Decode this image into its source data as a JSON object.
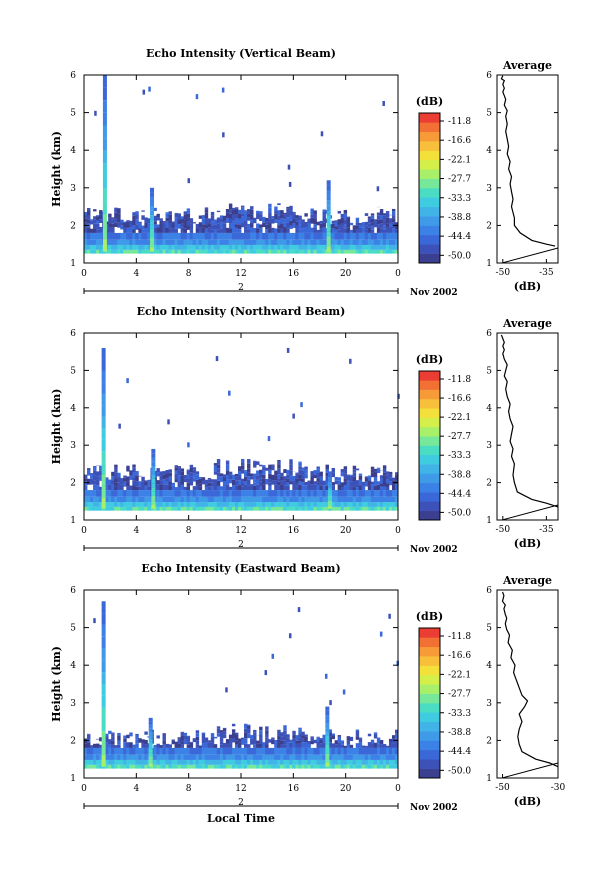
{
  "colors": {
    "scale": [
      "#3a3f8f",
      "#3d52b8",
      "#3a68d8",
      "#3c82e6",
      "#3f9ae8",
      "#40b4e6",
      "#3fcbe0",
      "#4bdcc4",
      "#77e89a",
      "#a8ef6a",
      "#d4ef4a",
      "#f3e03a",
      "#f8bf3a",
      "#f79a38",
      "#f37035",
      "#ec3d34"
    ],
    "axis": "#000000"
  },
  "colorbar": {
    "unit": "(dB)",
    "ticks": [
      "-11.8",
      "-16.6",
      "-22.1",
      "-27.7",
      "-33.3",
      "-38.8",
      "-44.4",
      "-50.0"
    ]
  },
  "time_axis": {
    "date_label": "Nov 2002",
    "date_labels": [
      "Nov 2002",
      "Nov 2002",
      "Nov 2002"
    ],
    "day_label": "2",
    "bottom_xlabel": "Local Time"
  },
  "chart_data": [
    {
      "type": "heatmap",
      "title": "Echo Intensity (Vertical Beam)",
      "ylabel": "Height (km)",
      "xlabel": "",
      "x_ticks": [
        "0",
        "4",
        "8",
        "12",
        "16",
        "20",
        "0"
      ],
      "y_ticks": [
        "1",
        "2",
        "3",
        "4",
        "5",
        "6"
      ],
      "xlim": [
        0,
        24
      ],
      "ylim": [
        1,
        6
      ],
      "color_unit": "dB",
      "color_range": [
        -50.0,
        -11.8
      ],
      "features": {
        "layer_top_km": 2.3,
        "spikes": [
          {
            "time_h": 1.6,
            "top_km": 6.0
          },
          {
            "time_h": 5.2,
            "top_km": 3.0
          },
          {
            "time_h": 18.7,
            "top_km": 3.2
          }
        ]
      }
    },
    {
      "type": "line",
      "title": "Average",
      "xlabel": "(dB)",
      "ylabel": "",
      "x_ticks": [
        "-50",
        "-35"
      ],
      "y_ticks": [
        "1",
        "2",
        "3",
        "4",
        "5",
        "6"
      ],
      "xlim": [
        -52,
        -31
      ],
      "ylim": [
        1,
        6
      ],
      "x": [
        -32,
        -35,
        -40,
        -44,
        -46,
        -46,
        -47,
        -46.5,
        -47,
        -47.5,
        -47,
        -48,
        -47.5,
        -48.5,
        -48,
        -48.5,
        -49,
        -48.5,
        -49,
        -48.5,
        -49.5,
        -49,
        -49.5,
        -50,
        -49.5,
        -50,
        -49.5,
        -50.5,
        -50
      ],
      "y": [
        1.45,
        1.5,
        1.6,
        1.8,
        2.0,
        2.2,
        2.5,
        2.7,
        2.9,
        3.1,
        3.3,
        3.5,
        3.7,
        3.9,
        4.1,
        4.3,
        4.5,
        4.7,
        4.9,
        5.05,
        5.2,
        5.35,
        5.45,
        5.55,
        5.65,
        5.75,
        5.85,
        5.9,
        5.98
      ]
    },
    {
      "type": "heatmap",
      "title": "Echo Intensity (Northward Beam)",
      "ylabel": "Height (km)",
      "xlabel": "",
      "x_ticks": [
        "0",
        "4",
        "8",
        "12",
        "16",
        "20",
        "0"
      ],
      "y_ticks": [
        "1",
        "2",
        "3",
        "4",
        "5",
        "6"
      ],
      "xlim": [
        0,
        24
      ],
      "ylim": [
        1,
        6
      ],
      "color_unit": "dB",
      "color_range": [
        -50.0,
        -11.8
      ],
      "features": {
        "layer_top_km": 2.3,
        "spikes": [
          {
            "time_h": 1.5,
            "top_km": 5.6
          },
          {
            "time_h": 5.3,
            "top_km": 2.9
          },
          {
            "time_h": 18.8,
            "top_km": 2.3
          }
        ]
      }
    },
    {
      "type": "line",
      "title": "Average",
      "xlabel": "(dB)",
      "ylabel": "",
      "x_ticks": [
        "-50",
        "-35"
      ],
      "y_ticks": [
        "1",
        "2",
        "3",
        "4",
        "5",
        "6"
      ],
      "xlim": [
        -52,
        -31
      ],
      "ylim": [
        1,
        6
      ],
      "x": [
        -31,
        -35,
        -40,
        -45,
        -46,
        -46.5,
        -46,
        -47,
        -46.5,
        -47.5,
        -47,
        -46.5,
        -47.5,
        -48,
        -47.5,
        -48.5,
        -49,
        -48.5,
        -49.5,
        -49,
        -48.5,
        -49.5,
        -50,
        -49.5,
        -50,
        -49.5,
        -50,
        -50.5
      ],
      "y": [
        1.35,
        1.45,
        1.55,
        1.75,
        2.0,
        2.2,
        2.5,
        2.7,
        2.9,
        3.1,
        3.3,
        3.5,
        3.7,
        3.9,
        4.1,
        4.3,
        4.5,
        4.7,
        4.85,
        5.0,
        5.15,
        5.3,
        5.45,
        5.55,
        5.65,
        5.75,
        5.85,
        5.95
      ]
    },
    {
      "type": "heatmap",
      "title": "Echo Intensity (Eastward Beam)",
      "ylabel": "Height (km)",
      "xlabel": "Local Time",
      "x_ticks": [
        "0",
        "4",
        "8",
        "12",
        "16",
        "20",
        "0"
      ],
      "y_ticks": [
        "1",
        "2",
        "3",
        "4",
        "5",
        "6"
      ],
      "xlim": [
        0,
        24
      ],
      "ylim": [
        1,
        6
      ],
      "color_unit": "dB",
      "color_range": [
        -50.0,
        -11.8
      ],
      "features": {
        "layer_top_km": 2.1,
        "spikes": [
          {
            "time_h": 1.5,
            "top_km": 5.7
          },
          {
            "time_h": 5.1,
            "top_km": 2.6
          },
          {
            "time_h": 18.6,
            "top_km": 2.9
          }
        ]
      }
    },
    {
      "type": "line",
      "title": "Average",
      "xlabel": "(dB)",
      "ylabel": "",
      "x_ticks": [
        "-50",
        "-30"
      ],
      "y_ticks": [
        "1",
        "2",
        "3",
        "4",
        "5",
        "6"
      ],
      "xlim": [
        -52,
        -30
      ],
      "ylim": [
        1,
        6
      ],
      "x": [
        -30,
        -33,
        -38,
        -43,
        -44,
        -44.5,
        -44,
        -43,
        -44,
        -42,
        -41,
        -43,
        -44,
        -45,
        -46,
        -45.5,
        -47,
        -46.5,
        -48,
        -47.5,
        -48.5,
        -49,
        -48.5,
        -49,
        -49.5,
        -49,
        -50,
        -49.5,
        -50
      ],
      "y": [
        1.3,
        1.4,
        1.5,
        1.7,
        1.9,
        2.1,
        2.3,
        2.5,
        2.7,
        2.9,
        3.05,
        3.2,
        3.4,
        3.6,
        3.8,
        4.0,
        4.2,
        4.4,
        4.6,
        4.8,
        4.95,
        5.1,
        5.25,
        5.35,
        5.5,
        5.6,
        5.7,
        5.85,
        5.95
      ]
    }
  ]
}
